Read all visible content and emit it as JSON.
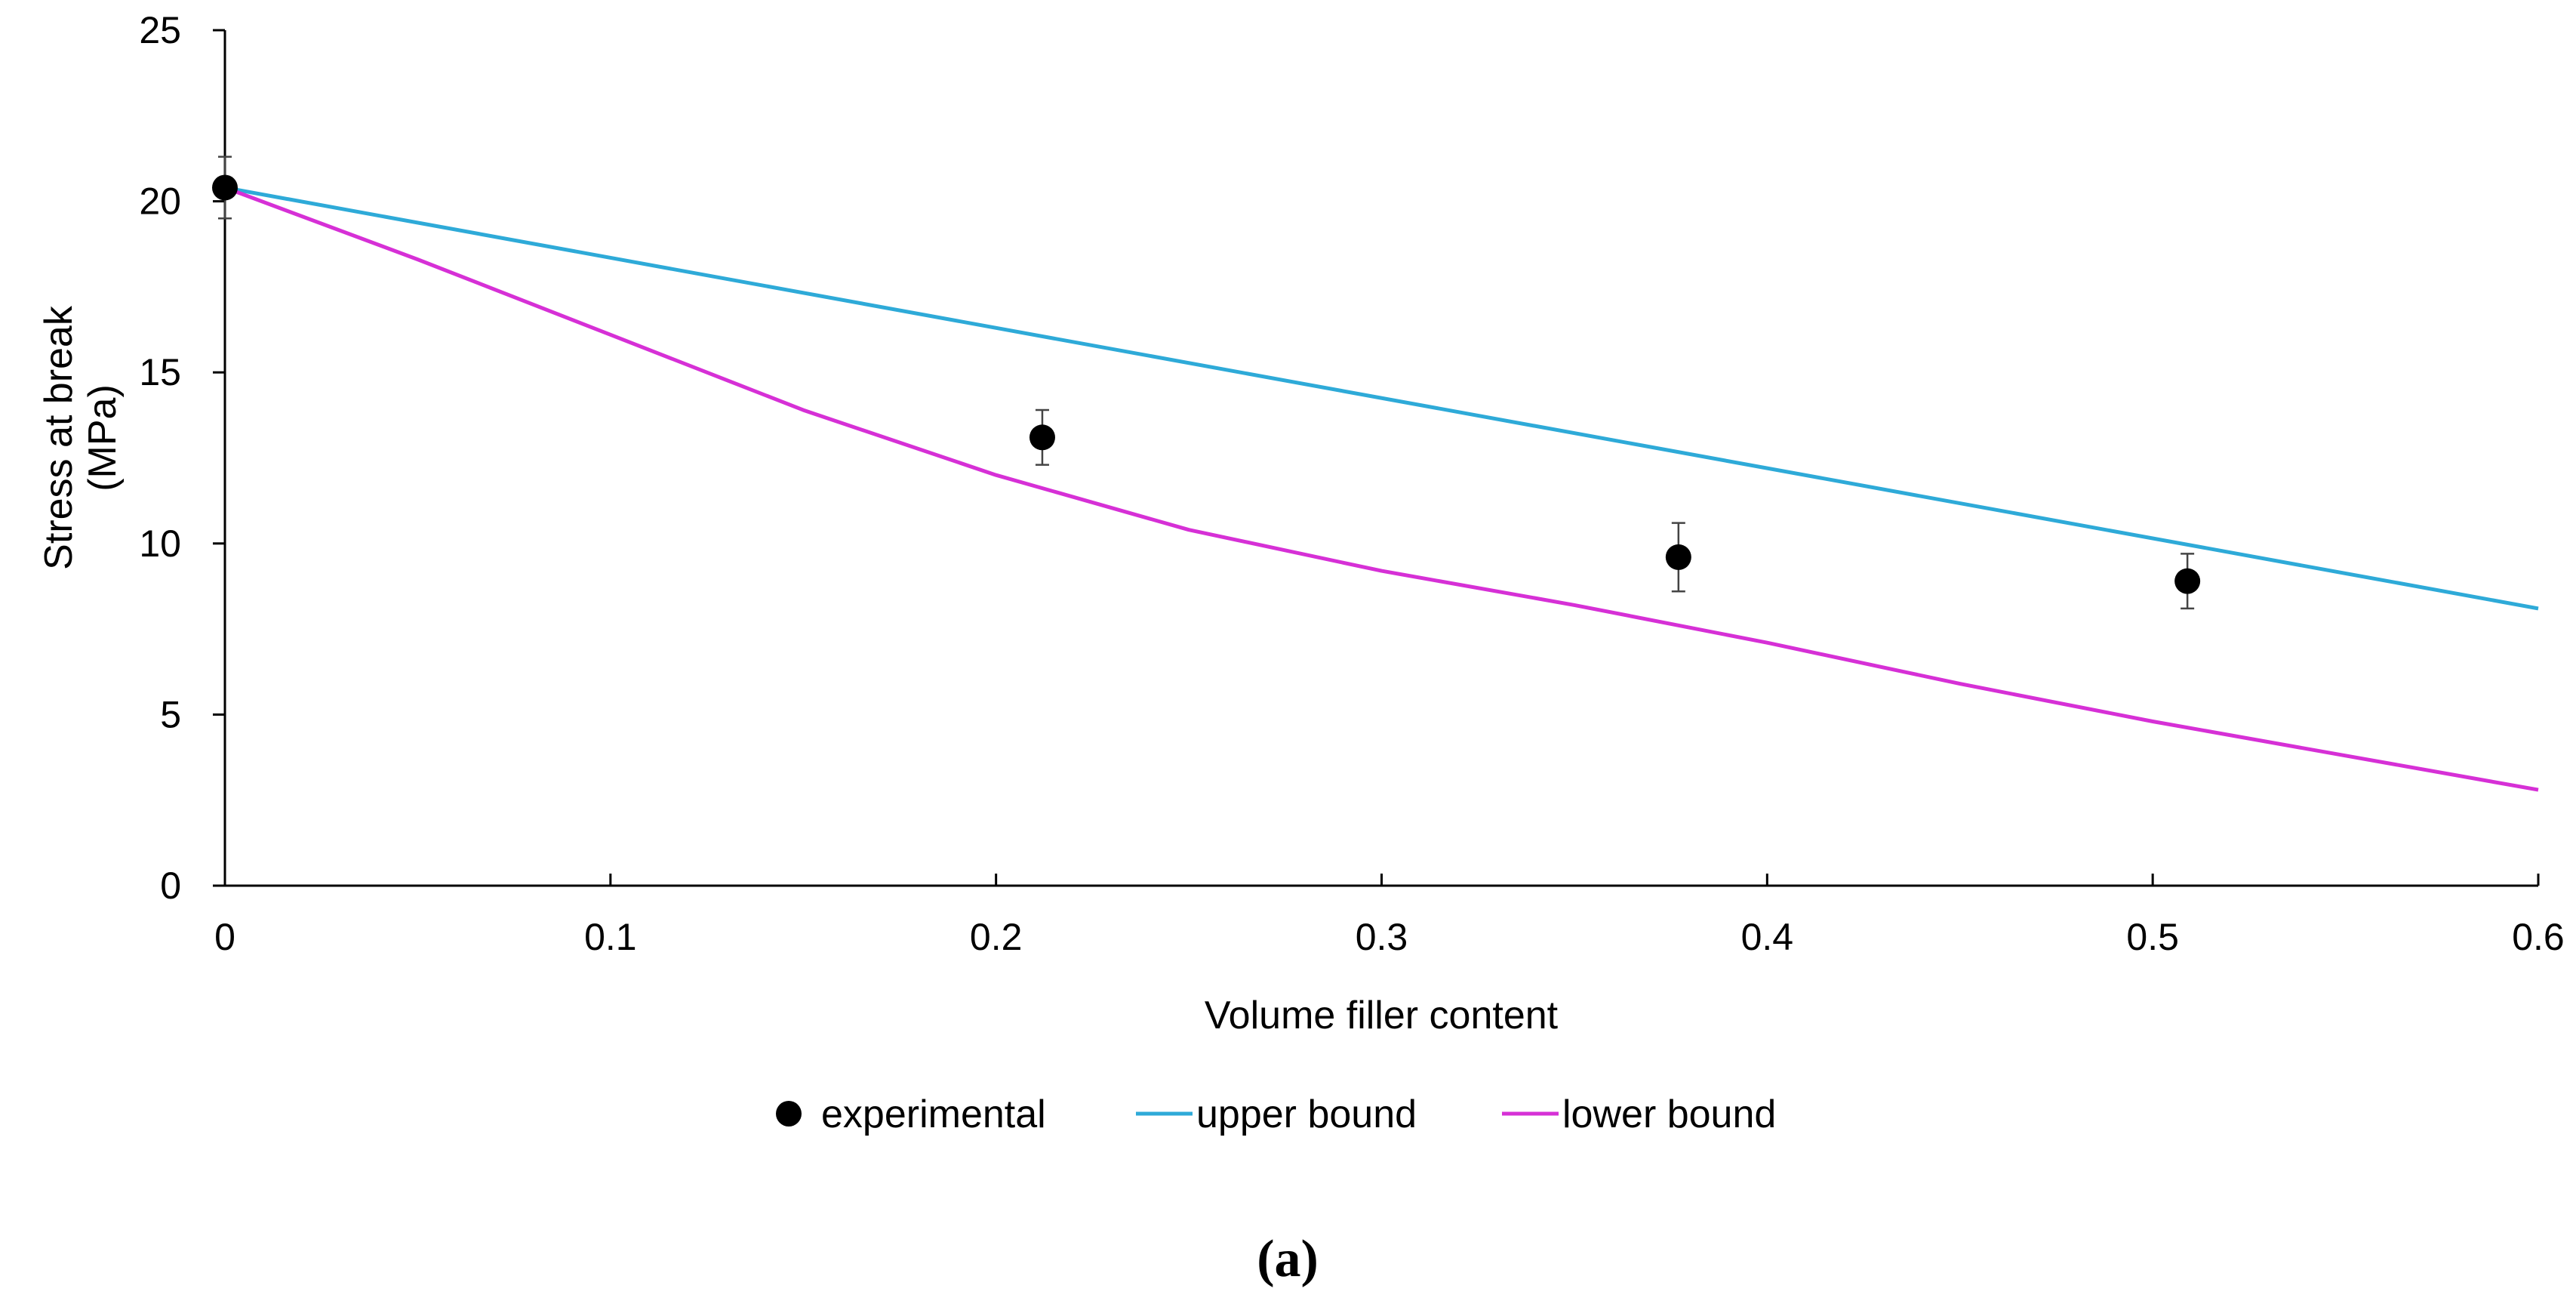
{
  "chart_data": {
    "type": "scatter",
    "title": "",
    "xlabel": "Volume filler content",
    "ylabel_lines": [
      "Stress at break",
      "(MPa)"
    ],
    "xlim": [
      0,
      0.6
    ],
    "ylim": [
      0,
      25
    ],
    "x_ticks": [
      0,
      0.1,
      0.2,
      0.3,
      0.4,
      0.5,
      0.6
    ],
    "x_tick_labels": [
      "0",
      "0.1",
      "0.2",
      "0.3",
      "0.4",
      "0.5",
      "0.6"
    ],
    "y_ticks": [
      0,
      5,
      10,
      15,
      20,
      25
    ],
    "y_tick_labels": [
      "0",
      "5",
      "10",
      "15",
      "20",
      "25"
    ],
    "grid": false,
    "legend_position": "bottom",
    "panel_label": "(a)",
    "series": [
      {
        "name": "experimental",
        "kind": "points",
        "color": "#000000",
        "x": [
          0,
          0.212,
          0.377,
          0.509
        ],
        "y": [
          20.4,
          13.1,
          9.6,
          8.9
        ],
        "error": [
          0.9,
          0.8,
          1.0,
          0.8
        ]
      },
      {
        "name": "upper bound",
        "kind": "line",
        "color": "#2eaad8",
        "x": [
          0,
          0.6
        ],
        "y": [
          20.4,
          8.1
        ]
      },
      {
        "name": "lower bound",
        "kind": "line",
        "color": "#d630d6",
        "x": [
          0,
          0.05,
          0.1,
          0.15,
          0.2,
          0.25,
          0.3,
          0.35,
          0.4,
          0.45,
          0.5,
          0.55,
          0.6
        ],
        "y": [
          20.4,
          18.3,
          16.1,
          13.9,
          12.0,
          10.4,
          9.2,
          8.2,
          7.1,
          5.9,
          4.8,
          3.8,
          2.8
        ]
      }
    ]
  }
}
